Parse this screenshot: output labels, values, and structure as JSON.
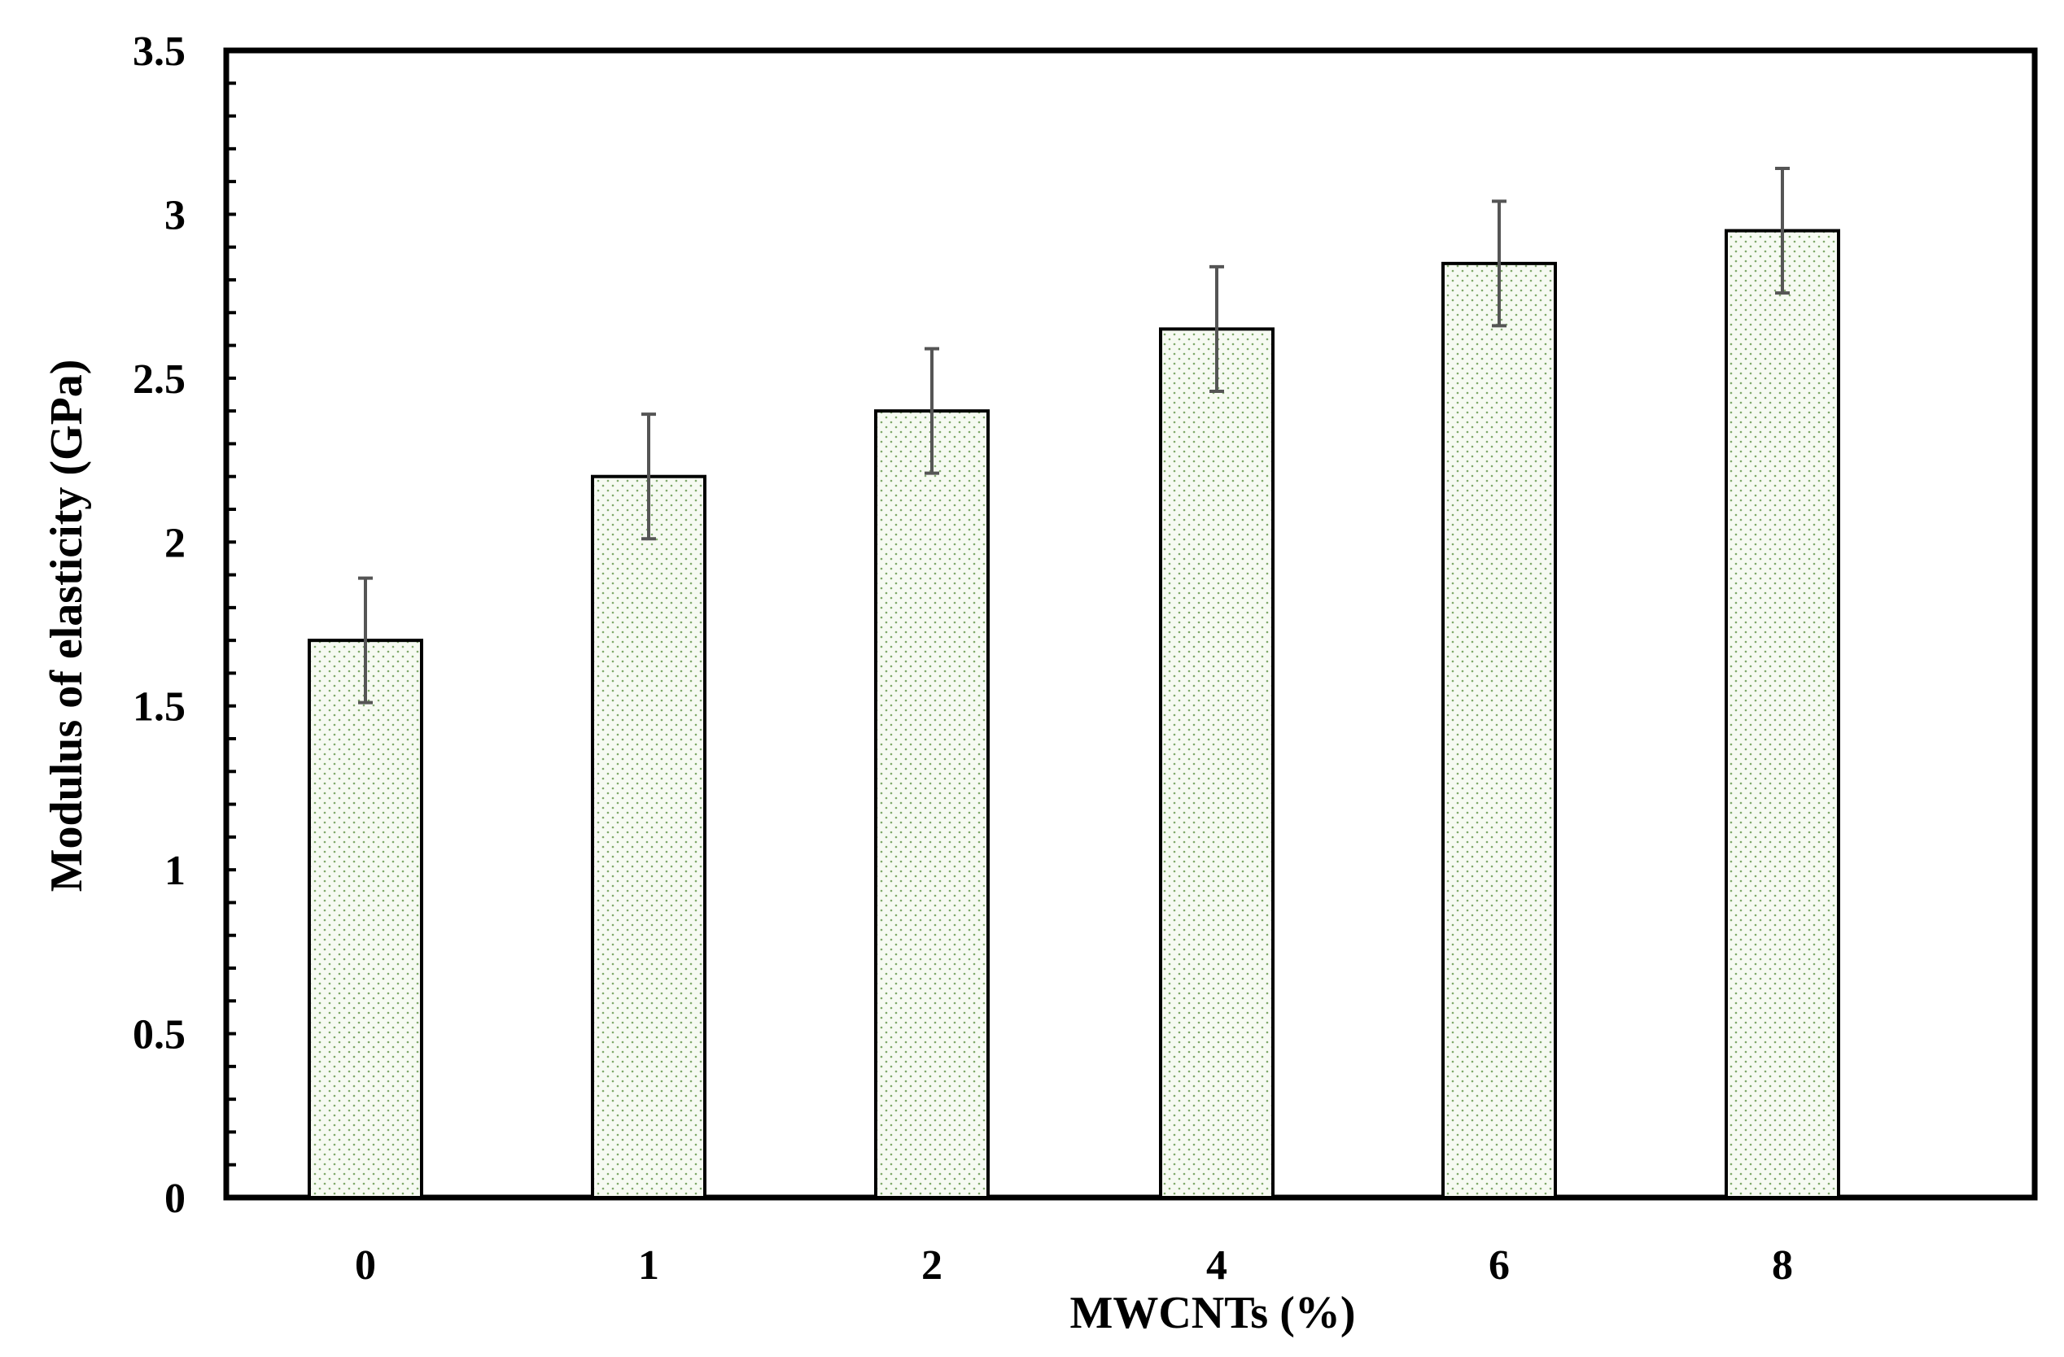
{
  "chart_data": {
    "type": "bar",
    "categories": [
      "0",
      "1",
      "2",
      "4",
      "6",
      "8"
    ],
    "values": [
      1.7,
      2.2,
      2.4,
      2.65,
      2.85,
      2.95
    ],
    "error": [
      0.19,
      0.19,
      0.19,
      0.19,
      0.19,
      0.19
    ],
    "xlabel": "MWCNTs  (%)",
    "ylabel": "Modulus of elasticity (GPa)",
    "ylim": [
      0,
      3.5
    ],
    "yticks": [
      0,
      0.5,
      1,
      1.5,
      2,
      2.5,
      3,
      3.5
    ],
    "ytick_labels": [
      "0",
      "0.5",
      "1",
      "1.5",
      "2",
      "2.5",
      "3",
      "3.5"
    ],
    "grid": false,
    "legend": "none",
    "colors": {
      "bar_fill": "#f6faf2",
      "bar_dots": "#7fa86a",
      "bar_edge": "#000000",
      "error_bar": "#555555"
    }
  }
}
